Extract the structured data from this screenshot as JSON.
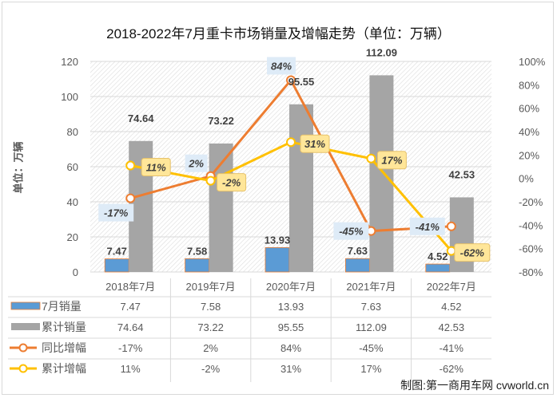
{
  "chart_data": {
    "type": "bar",
    "title": "2018-2022年7月重卡市场销量及增幅走势（单位：万辆）",
    "ylabel": "单位：万辆",
    "ylim": [
      0,
      120
    ],
    "y_ticks": [
      "0",
      "20",
      "40",
      "60",
      "80",
      "100",
      "120"
    ],
    "y2lim": [
      -80,
      100
    ],
    "y2_ticks": [
      "-80%",
      "-60%",
      "-40%",
      "-20%",
      "0%",
      "20%",
      "40%",
      "60%",
      "80%",
      "100%"
    ],
    "categories": [
      "2018年7月",
      "2019年7月",
      "2020年7月",
      "2021年7月",
      "2022年7月"
    ],
    "grid": true,
    "legend_position": "bottom-table",
    "series": [
      {
        "name": "7月销量",
        "type": "bar",
        "axis": "left",
        "color": "#5b9bd5",
        "values": [
          7.47,
          7.58,
          13.93,
          7.63,
          4.52
        ],
        "labels": [
          "7.47",
          "7.58",
          "13.93",
          "7.63",
          "4.52"
        ]
      },
      {
        "name": "累计销量",
        "type": "bar",
        "axis": "left",
        "color": "#a5a5a5",
        "values": [
          74.64,
          73.22,
          95.55,
          112.09,
          42.53
        ],
        "labels": [
          "74.64",
          "73.22",
          "95.55",
          "112.09",
          "42.53"
        ]
      },
      {
        "name": "同比增幅",
        "type": "line",
        "axis": "right",
        "color": "#ed7d31",
        "values": [
          -17,
          2,
          84,
          -45,
          -41
        ],
        "labels": [
          "-17%",
          "2%",
          "84%",
          "-45%",
          "-41%"
        ]
      },
      {
        "name": "累计增幅",
        "type": "line",
        "axis": "right",
        "color": "#ffc000",
        "values": [
          11,
          -2,
          31,
          17,
          -62
        ],
        "labels": [
          "11%",
          "-2%",
          "31%",
          "17%",
          "-62%"
        ]
      }
    ]
  },
  "credit": "制图:第一商用车网 cvworld.cn"
}
